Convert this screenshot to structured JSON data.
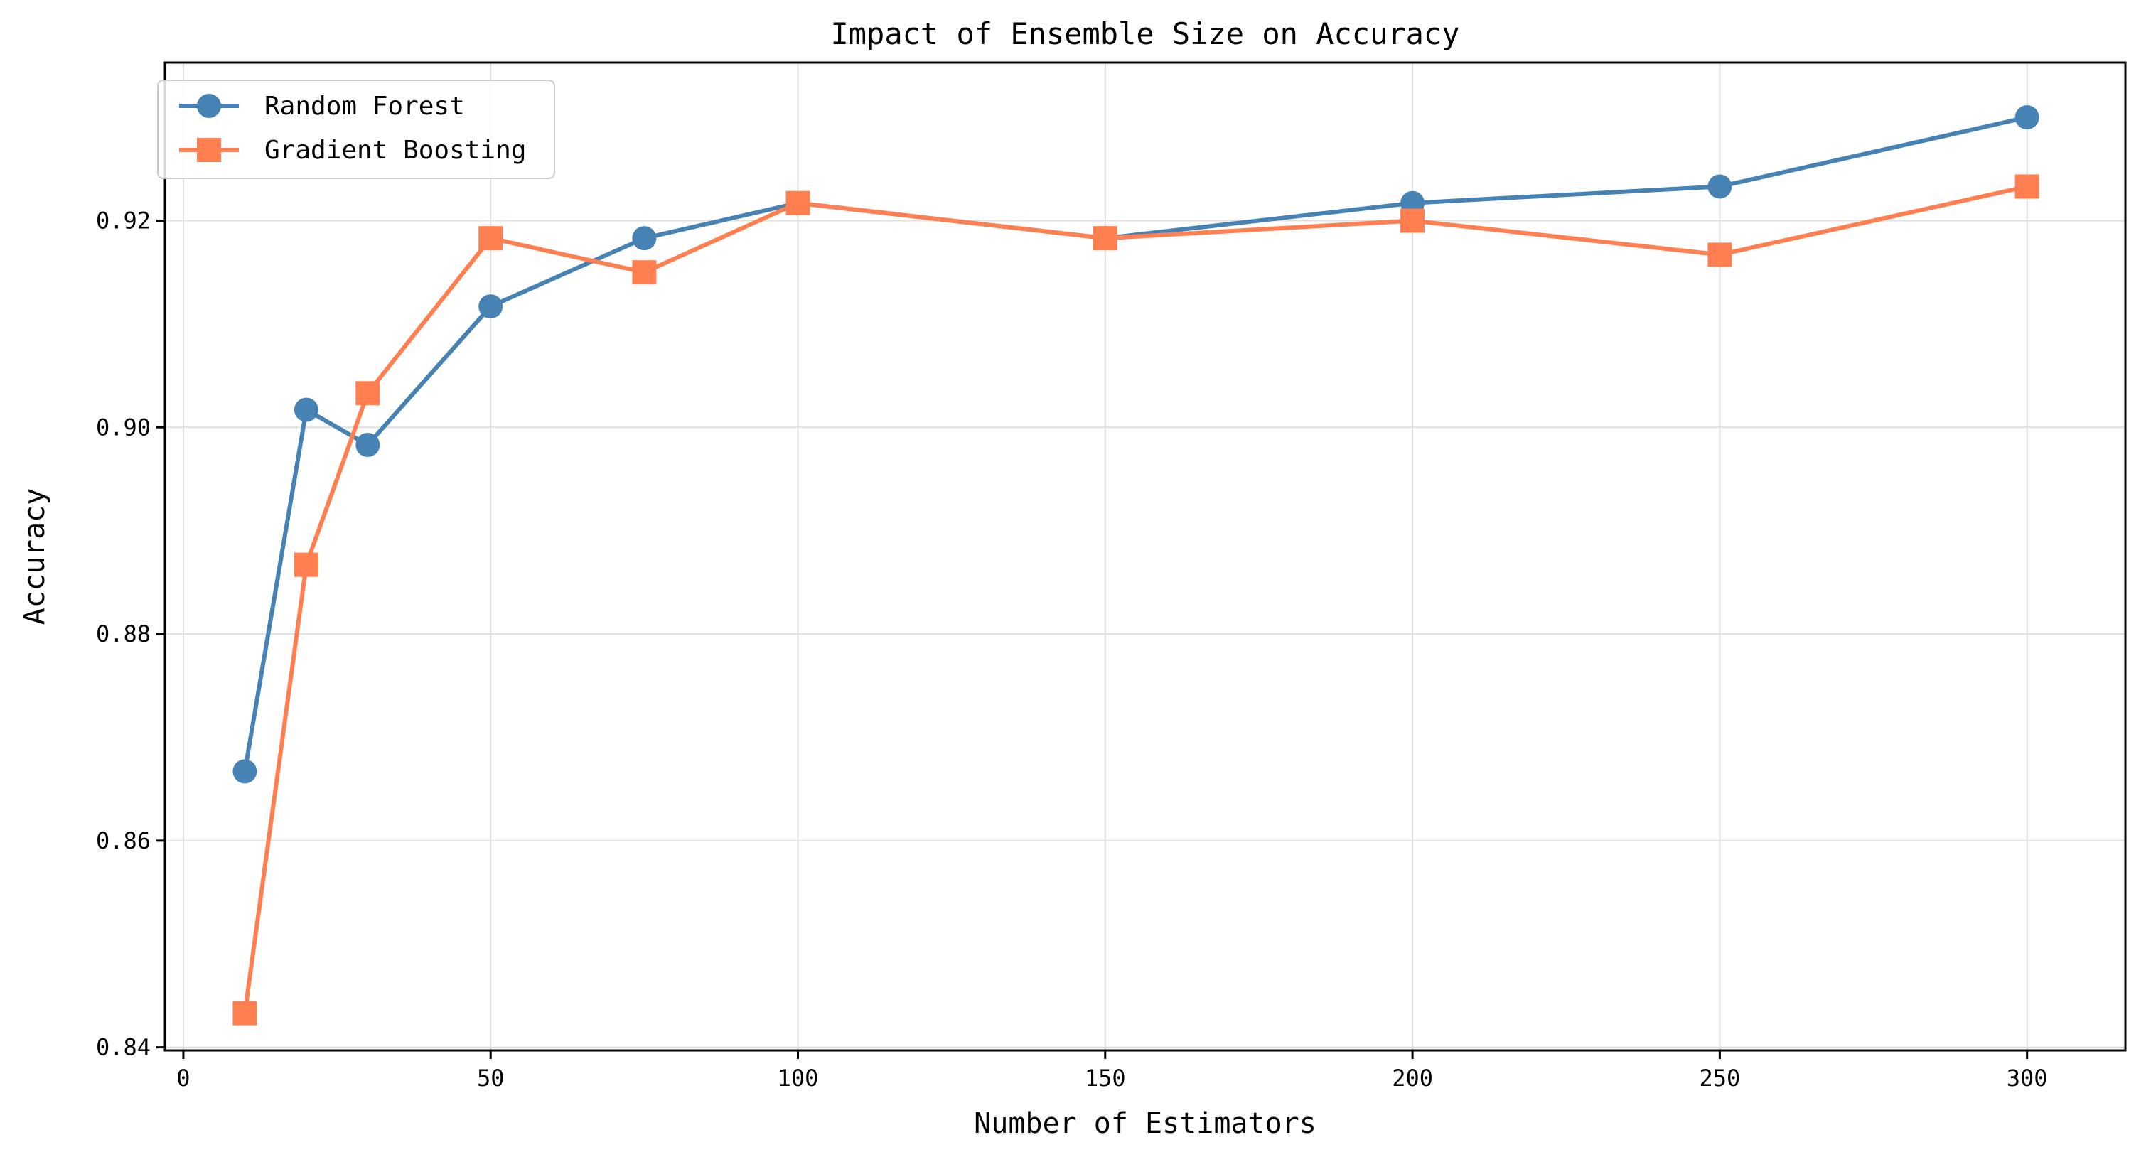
{
  "chart_data": {
    "type": "line",
    "title": "Impact of Ensemble Size on Accuracy",
    "xlabel": "Number of Estimators",
    "ylabel": "Accuracy",
    "x": [
      10,
      20,
      30,
      50,
      75,
      100,
      150,
      200,
      250,
      300
    ],
    "xlim": [
      -3,
      316
    ],
    "ylim": [
      0.8397,
      0.9353
    ],
    "xticks": [
      0,
      50,
      100,
      150,
      200,
      250,
      300
    ],
    "yticks": [
      0.84,
      0.86,
      0.88,
      0.9,
      0.92
    ],
    "ytick_labels": [
      "0.84",
      "0.86",
      "0.88",
      "0.90",
      "0.92"
    ],
    "grid": true,
    "legend_position": "upper-left",
    "series": [
      {
        "name": "Random Forest",
        "color": "#4682B4",
        "marker": "circle",
        "values": [
          0.8667,
          0.9017,
          0.8983,
          0.9117,
          0.9183,
          0.9217,
          0.9183,
          0.9217,
          0.9233,
          0.93
        ]
      },
      {
        "name": "Gradient Boosting",
        "color": "#FF7F50",
        "marker": "square",
        "values": [
          0.8433,
          0.8867,
          0.9033,
          0.9183,
          0.915,
          0.9217,
          0.9183,
          0.92,
          0.9167,
          0.9233
        ]
      }
    ]
  }
}
